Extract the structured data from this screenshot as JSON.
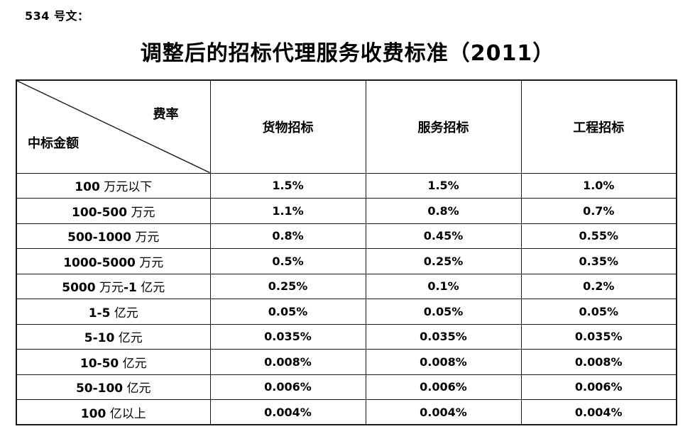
{
  "page": {
    "doc_label": "534 号文：",
    "title": "调整后的招标代理服务收费标准（2011）"
  },
  "table": {
    "corner": {
      "top_right_label": "费率",
      "bottom_left_label": "中标金额"
    },
    "columns": [
      "货物招标",
      "服务招标",
      "工程招标"
    ],
    "rows": [
      {
        "label": "100 万元以下",
        "values": [
          "1.5%",
          "1.5%",
          "1.0%"
        ]
      },
      {
        "label": "100-500 万元",
        "values": [
          "1.1%",
          "0.8%",
          "0.7%"
        ]
      },
      {
        "label": "500-1000 万元",
        "values": [
          "0.8%",
          "0.45%",
          "0.55%"
        ]
      },
      {
        "label": "1000-5000 万元",
        "values": [
          "0.5%",
          "0.25%",
          "0.35%"
        ]
      },
      {
        "label": "5000 万元-1 亿元",
        "values": [
          "0.25%",
          "0.1%",
          "0.2%"
        ]
      },
      {
        "label": "1-5 亿元",
        "values": [
          "0.05%",
          "0.05%",
          "0.05%"
        ]
      },
      {
        "label": "5-10 亿元",
        "values": [
          "0.035%",
          "0.035%",
          "0.035%"
        ]
      },
      {
        "label": "10-50 亿元",
        "values": [
          "0.008%",
          "0.008%",
          "0.008%"
        ]
      },
      {
        "label": "50-100 亿元",
        "values": [
          "0.006%",
          "0.006%",
          "0.006%"
        ]
      },
      {
        "label": "100 亿以上",
        "values": [
          "0.004%",
          "0.004%",
          "0.004%"
        ]
      }
    ]
  },
  "colors": {
    "text": "#000000",
    "border": "#1a1a1a",
    "background": "#ffffff"
  }
}
